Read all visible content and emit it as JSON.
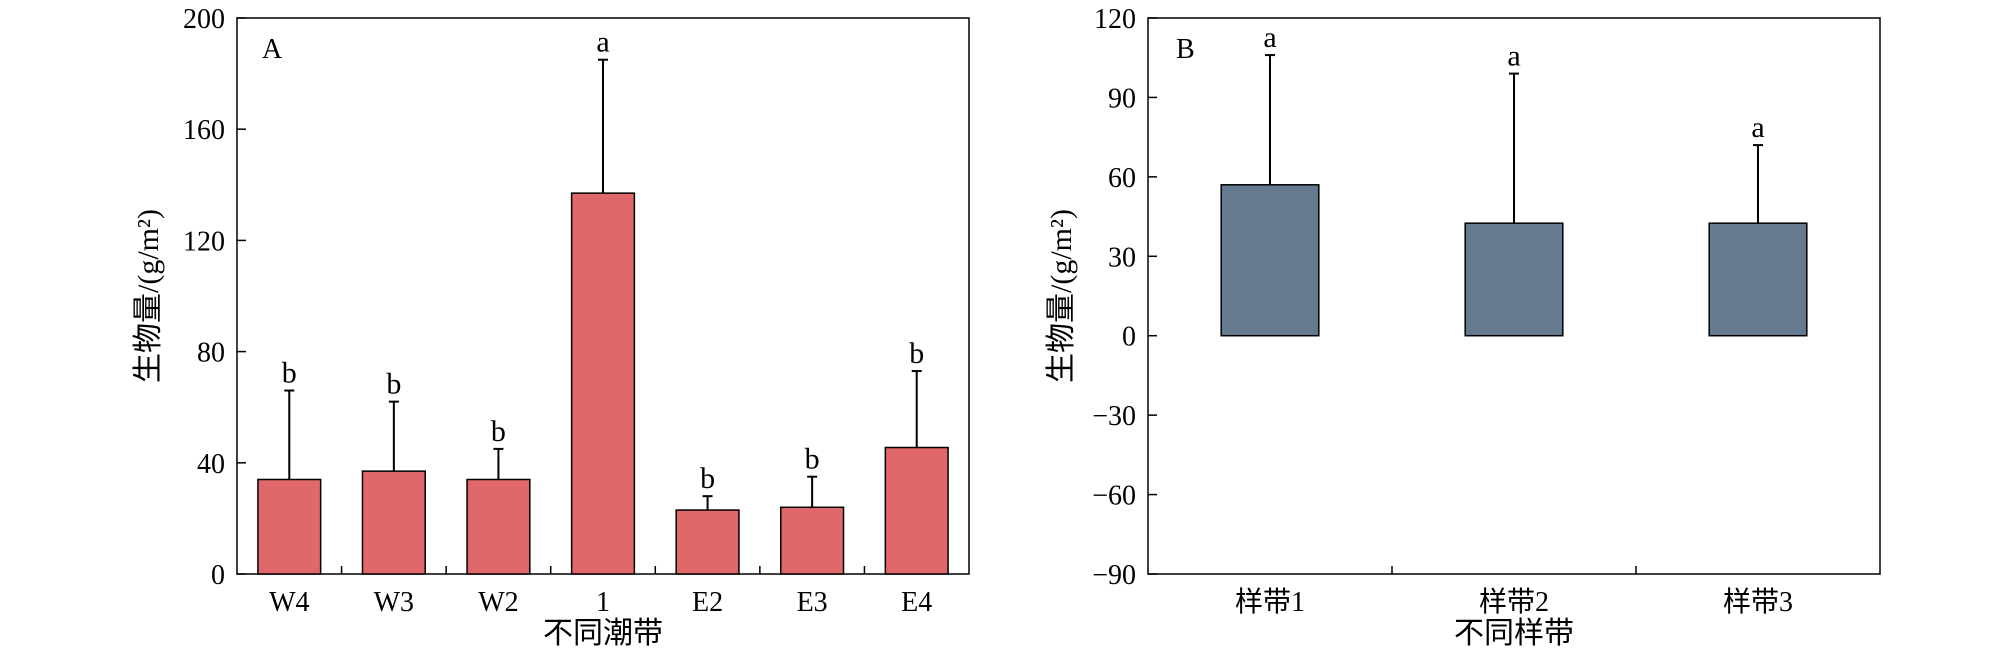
{
  "chart_data": [
    {
      "type": "bar",
      "panel_label": "A",
      "categories": [
        "W4",
        "W3",
        "W2",
        "1",
        "E2",
        "E3",
        "E4"
      ],
      "values": [
        34,
        37,
        34,
        137,
        23,
        24,
        45.5
      ],
      "error_upper": [
        66,
        62,
        45,
        185,
        28,
        35,
        73
      ],
      "significance": [
        "b",
        "b",
        "b",
        "a",
        "b",
        "b",
        "b"
      ],
      "xlabel": "不同潮带",
      "ylabel": "生物量/(g/m²)",
      "ylim": [
        0,
        200
      ],
      "yticks": [
        0,
        40,
        80,
        120,
        160,
        200
      ],
      "bar_color": "#e0686a"
    },
    {
      "type": "bar",
      "panel_label": "B",
      "categories": [
        "样带1",
        "样带2",
        "样带3"
      ],
      "values": [
        57,
        42.5,
        42.5
      ],
      "error_upper": [
        106,
        99,
        72
      ],
      "significance": [
        "a",
        "a",
        "a"
      ],
      "xlabel": "不同样带",
      "ylabel": "生物量/(g/m²)",
      "ylim": [
        -90,
        120
      ],
      "yticks": [
        -90,
        -60,
        -30,
        0,
        30,
        60,
        90,
        120
      ],
      "bar_color": "#667b8f"
    }
  ]
}
